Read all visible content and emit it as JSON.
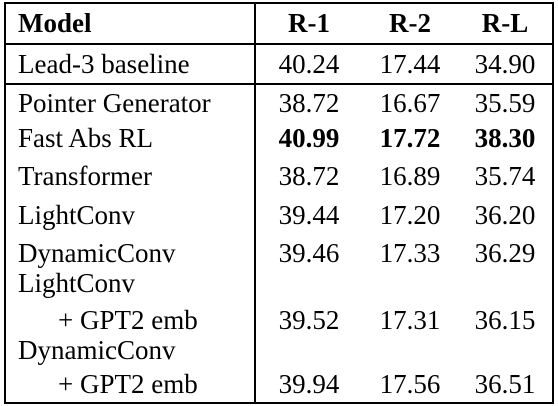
{
  "table": {
    "headers": {
      "model": "Model",
      "r1": "R-1",
      "r2": "R-2",
      "rl": "R-L"
    },
    "baseline": {
      "model": "Lead-3 baseline",
      "r1": "40.24",
      "r2": "17.44",
      "rl": "34.90"
    },
    "rows": [
      {
        "model": "Pointer Generator",
        "r1": "38.72",
        "r2": "16.67",
        "rl": "35.59"
      },
      {
        "model": "Fast Abs RL",
        "r1": "40.99",
        "r2": "17.72",
        "rl": "38.30"
      },
      {
        "model": "Transformer",
        "r1": "38.72",
        "r2": "16.89",
        "rl": "35.74"
      },
      {
        "model": "LightConv",
        "r1": "39.44",
        "r2": "17.20",
        "rl": "36.20"
      },
      {
        "model": "DynamicConv",
        "r1": "39.46",
        "r2": "17.33",
        "rl": "36.29"
      }
    ],
    "gpt2_rows": [
      {
        "model_line1": "LightConv",
        "model_line2": "+ GPT2 emb",
        "r1": "39.52",
        "r2": "17.31",
        "rl": "36.15"
      },
      {
        "model_line1": "DynamicConv",
        "model_line2": "+ GPT2 emb",
        "r1": "39.94",
        "r2": "17.56",
        "rl": "36.51"
      }
    ]
  }
}
